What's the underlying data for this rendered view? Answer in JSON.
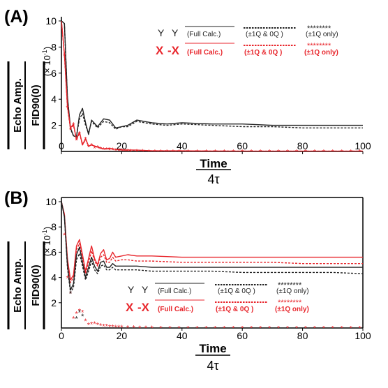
{
  "colors": {
    "black": "#222222",
    "red": "#e8262c",
    "axis": "#000000"
  },
  "chart_data": [
    {
      "type": "line",
      "panel_label": "(A)",
      "xlim": [
        0,
        100
      ],
      "ylim": [
        0,
        10
      ],
      "x_ticks": [
        "0",
        "20",
        "40",
        "60",
        "80",
        "100"
      ],
      "y_ticks": [
        "2",
        "4",
        "6",
        "8",
        "10"
      ],
      "ylabel_top": "Echo Amp.",
      "ylabel_bottom": "FID90(0)",
      "ylabel_unit": "(× 10",
      "ylabel_exp": "-1",
      "xlabel_top": "Time",
      "xlabel_bottom": "4τ",
      "legend": {
        "row1_prefix": "Y",
        "row1_mid": "Y",
        "row2_prefix": "X",
        "row2_mid": "-X",
        "full": "(Full Calc.)",
        "q10": "(±1Q & 0Q )",
        "q1": "(±1Q only)",
        "stars": "********"
      },
      "series": [
        {
          "color": "black",
          "style": "solid",
          "x": [
            0,
            1,
            2,
            3,
            4,
            5,
            6,
            7,
            8,
            9,
            10,
            12,
            14,
            16,
            18,
            20,
            22,
            25,
            30,
            35,
            40,
            50,
            60,
            70,
            80,
            90,
            100
          ],
          "y": [
            10,
            9.8,
            4.2,
            1.8,
            1.2,
            1.1,
            2.8,
            3.3,
            2.2,
            1.3,
            2.4,
            1.9,
            2.5,
            2.4,
            1.8,
            1.9,
            2.0,
            2.4,
            2.2,
            2.1,
            2.2,
            2.1,
            2.1,
            2.0,
            2.0,
            2.0,
            2.0
          ]
        },
        {
          "color": "black",
          "style": "dashed",
          "x": [
            0,
            1,
            2,
            3,
            4,
            5,
            6,
            7,
            8,
            9,
            10,
            12,
            14,
            16,
            18,
            20,
            22,
            25,
            30,
            35,
            40,
            50,
            60,
            70,
            80,
            90,
            100
          ],
          "y": [
            10,
            9.8,
            4.1,
            1.7,
            1.2,
            1.2,
            2.5,
            2.9,
            2.0,
            1.4,
            2.3,
            1.8,
            2.3,
            2.2,
            1.7,
            1.9,
            1.9,
            2.3,
            2.1,
            2.0,
            2.1,
            2.0,
            1.9,
            1.9,
            1.8,
            1.8,
            1.8
          ]
        },
        {
          "color": "red",
          "style": "solid",
          "x": [
            0,
            1,
            2,
            3,
            4,
            5,
            6,
            7,
            8,
            9,
            10,
            12,
            14,
            16,
            18,
            20,
            25,
            30,
            40,
            50,
            60,
            70,
            80,
            90,
            100
          ],
          "y": [
            10,
            7.5,
            3.5,
            1.8,
            2.1,
            0.9,
            1.5,
            0.5,
            1.0,
            0.4,
            0.5,
            0.35,
            0.2,
            0.25,
            0.15,
            0.12,
            0.1,
            0.05,
            0.05,
            0.03,
            0.02,
            0.02,
            0.02,
            0.02,
            0.02
          ]
        },
        {
          "color": "red",
          "style": "dashed",
          "x": [
            0,
            1,
            2,
            3,
            4,
            5,
            6,
            7,
            8,
            9,
            10,
            12,
            14,
            16,
            18,
            20,
            25,
            30,
            40,
            50,
            60,
            70,
            80,
            90,
            100
          ],
          "y": [
            10,
            7.4,
            3.4,
            1.7,
            2.0,
            0.9,
            1.4,
            0.5,
            0.9,
            0.4,
            0.5,
            0.3,
            0.2,
            0.2,
            0.15,
            0.1,
            0.08,
            0.05,
            0.04,
            0.03,
            0.02,
            0.02,
            0.02,
            0.02,
            0.02
          ]
        },
        {
          "color": "red",
          "style": "markers",
          "x": [
            1,
            2,
            3,
            4,
            5,
            6,
            7,
            8,
            9,
            10,
            11,
            12,
            13,
            14,
            15,
            16,
            17,
            18,
            19,
            20,
            21,
            22,
            23,
            25,
            27,
            29,
            31,
            33,
            35,
            37,
            39,
            42,
            45,
            48,
            51,
            54,
            57,
            60,
            63,
            66,
            69,
            72,
            75,
            78,
            81,
            84,
            87,
            90,
            93,
            96,
            99
          ],
          "y": [
            7.4,
            3.4,
            1.7,
            2.1,
            0.9,
            1.4,
            0.6,
            1.0,
            0.4,
            0.5,
            0.3,
            0.35,
            0.25,
            0.2,
            0.2,
            0.15,
            0.15,
            0.12,
            0.1,
            0.1,
            0.08,
            0.08,
            0.06,
            0.05,
            0.05,
            0.04,
            0.04,
            0.04,
            0.03,
            0.03,
            0.03,
            0.03,
            0.02,
            0.02,
            0.02,
            0.02,
            0.02,
            0.02,
            0.02,
            0.02,
            0.02,
            0.02,
            0.02,
            0.02,
            0.02,
            0.02,
            0.02,
            0.02,
            0.02,
            0.02,
            0.02
          ]
        }
      ]
    },
    {
      "type": "line",
      "panel_label": "(B)",
      "xlim": [
        0,
        100
      ],
      "ylim": [
        0,
        10
      ],
      "x_ticks": [
        "0",
        "20",
        "40",
        "60",
        "80",
        "100"
      ],
      "y_ticks": [
        "2",
        "4",
        "6",
        "8",
        "10"
      ],
      "ylabel_top": "Echo Amp.",
      "ylabel_bottom": "FID90(0)",
      "ylabel_unit": "(× 10",
      "ylabel_exp": "-1",
      "xlabel_top": "Time",
      "xlabel_bottom": "4τ",
      "legend": {
        "row1_prefix": "Y",
        "row1_mid": "Y",
        "row2_prefix": "X",
        "row2_mid": "-X",
        "full": "(Full Calc.)",
        "q10": "(±1Q & 0Q )",
        "q1": "(±1Q only)",
        "stars": "********"
      },
      "series": [
        {
          "color": "red",
          "style": "solid",
          "x": [
            0,
            1,
            2,
            3,
            4,
            5,
            6,
            7,
            8,
            9,
            10,
            11,
            12,
            13,
            14,
            15,
            16,
            17,
            18,
            20,
            22,
            25,
            30,
            40,
            50,
            60,
            70,
            80,
            90,
            100
          ],
          "y": [
            10,
            9.0,
            5.5,
            3.8,
            4.2,
            6.5,
            7.0,
            5.8,
            4.5,
            5.5,
            6.5,
            5.5,
            5.0,
            5.9,
            6.2,
            5.4,
            5.5,
            6.0,
            5.6,
            5.7,
            5.8,
            5.7,
            5.7,
            5.6,
            5.6,
            5.6,
            5.6,
            5.6,
            5.6,
            5.6
          ]
        },
        {
          "color": "red",
          "style": "dashed",
          "x": [
            0,
            1,
            2,
            3,
            4,
            5,
            6,
            7,
            8,
            9,
            10,
            11,
            12,
            13,
            14,
            15,
            16,
            17,
            18,
            20,
            22,
            25,
            30,
            40,
            50,
            60,
            70,
            80,
            90,
            100
          ],
          "y": [
            10,
            9.0,
            5.4,
            3.6,
            4.0,
            6.2,
            6.7,
            5.6,
            4.3,
            5.2,
            6.1,
            5.3,
            4.9,
            5.6,
            5.8,
            5.2,
            5.2,
            5.6,
            5.3,
            5.4,
            5.4,
            5.3,
            5.3,
            5.2,
            5.2,
            5.2,
            5.2,
            5.1,
            5.1,
            5.1
          ]
        },
        {
          "color": "black",
          "style": "solid",
          "x": [
            0,
            1,
            2,
            3,
            4,
            5,
            6,
            7,
            8,
            9,
            10,
            11,
            12,
            13,
            14,
            15,
            16,
            17,
            18,
            20,
            22,
            25,
            30,
            40,
            50,
            60,
            70,
            80,
            90,
            100
          ],
          "y": [
            10,
            8.8,
            5.0,
            3.0,
            3.5,
            5.8,
            6.4,
            5.2,
            4.0,
            4.8,
            5.6,
            4.9,
            4.5,
            5.2,
            5.3,
            4.8,
            4.8,
            5.1,
            4.9,
            4.9,
            4.9,
            4.9,
            4.8,
            4.8,
            4.8,
            4.8,
            4.8,
            4.8,
            4.8,
            4.8
          ]
        },
        {
          "color": "black",
          "style": "dashed",
          "x": [
            0,
            1,
            2,
            3,
            4,
            5,
            6,
            7,
            8,
            9,
            10,
            11,
            12,
            13,
            14,
            15,
            16,
            17,
            18,
            20,
            22,
            25,
            30,
            40,
            50,
            60,
            70,
            80,
            90,
            100
          ],
          "y": [
            10,
            8.8,
            4.8,
            2.8,
            3.2,
            5.4,
            5.9,
            4.9,
            3.8,
            4.5,
            5.3,
            4.6,
            4.3,
            4.9,
            5.0,
            4.6,
            4.6,
            4.8,
            4.6,
            4.6,
            4.6,
            4.6,
            4.5,
            4.5,
            4.5,
            4.4,
            4.4,
            4.4,
            4.4,
            4.3
          ]
        },
        {
          "color": "red",
          "style": "markers",
          "x": [
            1,
            2,
            3,
            4,
            5,
            6,
            7,
            8,
            9,
            10,
            11,
            12,
            13,
            14,
            15,
            16,
            17,
            18,
            19,
            20,
            22,
            24,
            26,
            28,
            30,
            33,
            36,
            39,
            42,
            45,
            48,
            51,
            54,
            57,
            60,
            63,
            66,
            69,
            72,
            75,
            78,
            81,
            84,
            87,
            90,
            93,
            96,
            99
          ],
          "y": [
            7.4,
            4.0,
            2.8,
            0.8,
            1.2,
            1.4,
            1.3,
            0.6,
            0.3,
            0.35,
            0.4,
            0.3,
            0.25,
            0.2,
            0.2,
            0.15,
            0.15,
            0.12,
            0.1,
            0.1,
            0.08,
            0.07,
            0.06,
            0.05,
            0.05,
            0.04,
            0.04,
            0.03,
            0.03,
            0.03,
            0.03,
            0.03,
            0.03,
            0.03,
            0.03,
            0.03,
            0.03,
            0.03,
            0.03,
            0.03,
            0.03,
            0.03,
            0.03,
            0.03,
            0.03,
            0.03,
            0.03,
            0.03
          ]
        },
        {
          "color": "black",
          "style": "markers",
          "x": [
            3,
            5,
            6,
            7
          ],
          "y": [
            2.8,
            0.8,
            1.3,
            1.0
          ]
        }
      ]
    }
  ]
}
